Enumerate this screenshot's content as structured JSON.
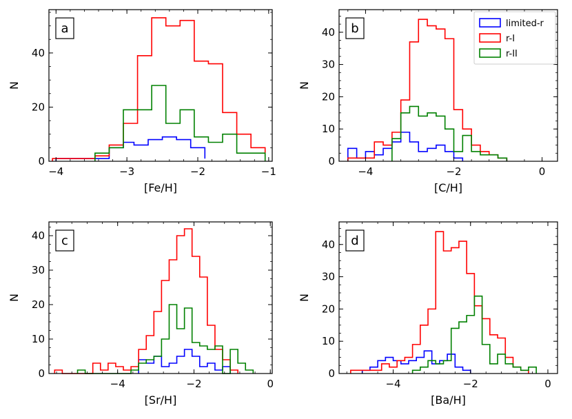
{
  "colors": {
    "limited_r": "#0000ff",
    "r_I": "#ff0000",
    "r_II": "#008000"
  },
  "legend": [
    {
      "label": "limited-r",
      "series": "limited_r"
    },
    {
      "label": "r-I",
      "series": "r_I"
    },
    {
      "label": "r-II",
      "series": "r_II"
    }
  ],
  "chart_data": [
    {
      "type": "histogram",
      "panel": "a",
      "xlabel": "[Fe/H]",
      "ylabel": "N",
      "xlim": [
        -4.1,
        -0.95
      ],
      "ylim": [
        0,
        56
      ],
      "xticks": [
        -4,
        -3,
        -2,
        -1
      ],
      "xtick_labels": [
        "−4",
        "−3",
        "−2",
        "−1"
      ],
      "yticks": [
        0,
        20,
        40
      ],
      "ytick_labels": [
        "0",
        "20",
        "40"
      ],
      "series": [
        {
          "name": "limited-r",
          "key": "limited_r",
          "edges": [
            -4.0,
            -3.65,
            -3.25,
            -3.05,
            -2.9,
            -2.7,
            -2.5,
            -2.3,
            -2.1,
            -1.9
          ],
          "counts": [
            1,
            1,
            5,
            7,
            6,
            8,
            9,
            8,
            5,
            1
          ]
        },
        {
          "name": "r-I",
          "key": "r_I",
          "edges": [
            -4.05,
            -3.85,
            -3.65,
            -3.45,
            -3.25,
            -3.05,
            -2.85,
            -2.65,
            -2.45,
            -2.25,
            -2.05,
            -1.85,
            -1.65,
            -1.45,
            -1.25,
            -1.05
          ],
          "counts": [
            1,
            1,
            1,
            2,
            6,
            14,
            39,
            53,
            50,
            52,
            37,
            36,
            18,
            10,
            5,
            2
          ]
        },
        {
          "name": "r-II",
          "key": "r_II",
          "edges": [
            -3.45,
            -3.25,
            -3.05,
            -2.85,
            -2.65,
            -2.45,
            -2.25,
            -2.05,
            -1.85,
            -1.65,
            -1.45,
            -1.25,
            -1.05
          ],
          "counts": [
            3,
            5,
            19,
            19,
            28,
            14,
            19,
            9,
            7,
            10,
            3,
            3
          ]
        }
      ]
    },
    {
      "type": "histogram",
      "panel": "b",
      "xlabel": "[C/H]",
      "ylabel": "N",
      "xlim": [
        -4.6,
        0.35
      ],
      "ylim": [
        0,
        47
      ],
      "xticks": [
        -4,
        -2,
        0
      ],
      "xtick_labels": [
        "−4",
        "−2",
        "0"
      ],
      "yticks": [
        0,
        10,
        20,
        30,
        40
      ],
      "ytick_labels": [
        "0",
        "10",
        "20",
        "30",
        "40"
      ],
      "series": [
        {
          "name": "limited-r",
          "key": "limited_r",
          "edges": [
            -4.4,
            -4.2,
            -4.0,
            -3.8,
            -3.6,
            -3.4,
            -3.2,
            -3.0,
            -2.8,
            -2.6,
            -2.4,
            -2.2,
            -2.0,
            -1.8
          ],
          "counts": [
            4,
            1,
            3,
            2,
            4,
            6,
            9,
            6,
            3,
            4,
            5,
            3,
            1
          ]
        },
        {
          "name": "r-I",
          "key": "r_I",
          "edges": [
            -4.4,
            -4.2,
            -4.0,
            -3.8,
            -3.6,
            -3.4,
            -3.2,
            -3.0,
            -2.8,
            -2.6,
            -2.4,
            -2.2,
            -2.0,
            -1.8,
            -1.6,
            -1.4,
            -1.2,
            -1.0,
            -0.8
          ],
          "counts": [
            1,
            1,
            1,
            6,
            5,
            9,
            19,
            37,
            44,
            42,
            41,
            38,
            16,
            10,
            5,
            3,
            2,
            1
          ]
        },
        {
          "name": "r-II",
          "key": "r_II",
          "edges": [
            -3.4,
            -3.2,
            -3.0,
            -2.8,
            -2.6,
            -2.4,
            -2.2,
            -2.0,
            -1.8,
            -1.6,
            -1.4,
            -1.2,
            -1.0,
            -0.8
          ],
          "counts": [
            7,
            15,
            17,
            14,
            15,
            14,
            10,
            3,
            8,
            3,
            2,
            2,
            1
          ]
        }
      ]
    },
    {
      "type": "histogram",
      "panel": "c",
      "xlabel": "[Sr/H]",
      "ylabel": "N",
      "xlim": [
        -5.8,
        0.05
      ],
      "ylim": [
        0,
        44
      ],
      "xticks": [
        -4,
        -2,
        0
      ],
      "xtick_labels": [
        "−4",
        "−2",
        "0"
      ],
      "yticks": [
        0,
        10,
        20,
        30,
        40
      ],
      "ytick_labels": [
        "0",
        "10",
        "20",
        "30",
        "40"
      ],
      "series": [
        {
          "name": "limited-r",
          "key": "limited_r",
          "edges": [
            -3.45,
            -3.25,
            -3.05,
            -2.85,
            -2.65,
            -2.45,
            -2.25,
            -2.05,
            -1.85,
            -1.65,
            -1.45,
            -1.25,
            -1.05
          ],
          "counts": [
            4,
            3,
            5,
            2,
            3,
            5,
            7,
            5,
            2,
            3,
            1,
            2
          ]
        },
        {
          "name": "r-I",
          "key": "r_I",
          "edges": [
            -5.65,
            -5.45,
            -4.65,
            -4.45,
            -4.25,
            -4.05,
            -3.85,
            -3.65,
            -3.45,
            -3.25,
            -3.05,
            -2.85,
            -2.65,
            -2.45,
            -2.25,
            -2.05,
            -1.85,
            -1.65,
            -1.45,
            -1.25,
            -1.05,
            -0.85
          ],
          "counts": [
            1,
            0,
            3,
            1,
            3,
            2,
            1,
            2,
            7,
            11,
            18,
            27,
            33,
            40,
            42,
            34,
            28,
            14,
            7,
            4,
            1
          ]
        },
        {
          "name": "r-II",
          "key": "r_II",
          "edges": [
            -5.05,
            -4.85,
            -3.65,
            -3.45,
            -3.25,
            -3.05,
            -2.85,
            -2.65,
            -2.45,
            -2.25,
            -2.05,
            -1.85,
            -1.65,
            -1.45,
            -1.25,
            -1.05,
            -0.85,
            -0.65,
            -0.45
          ],
          "counts": [
            1,
            0,
            1,
            3,
            4,
            5,
            10,
            20,
            13,
            19,
            9,
            8,
            7,
            8,
            0,
            7,
            3,
            1
          ]
        }
      ]
    },
    {
      "type": "histogram",
      "panel": "d",
      "xlabel": "[Ba/H]",
      "ylabel": "N",
      "xlim": [
        -5.4,
        0.25
      ],
      "ylim": [
        0,
        47
      ],
      "xticks": [
        -4,
        -2,
        0
      ],
      "xtick_labels": [
        "−4",
        "−2",
        "0"
      ],
      "yticks": [
        0,
        10,
        20,
        30,
        40
      ],
      "ytick_labels": [
        "0",
        "10",
        "20",
        "30",
        "40"
      ],
      "series": [
        {
          "name": "limited-r",
          "key": "limited_r",
          "edges": [
            -4.8,
            -4.6,
            -4.4,
            -4.2,
            -4.0,
            -3.8,
            -3.6,
            -3.4,
            -3.2,
            -3.0,
            -2.8,
            -2.6,
            -2.4,
            -2.2,
            -2.0
          ],
          "counts": [
            1,
            2,
            4,
            5,
            4,
            3,
            4,
            5,
            7,
            3,
            4,
            6,
            2,
            1
          ]
        },
        {
          "name": "r-I",
          "key": "r_I",
          "edges": [
            -5.1,
            -4.9,
            -4.7,
            -4.5,
            -4.3,
            -4.1,
            -3.9,
            -3.7,
            -3.5,
            -3.3,
            -3.1,
            -2.9,
            -2.7,
            -2.5,
            -2.3,
            -2.1,
            -1.9,
            -1.7,
            -1.5,
            -1.3,
            -1.1,
            -0.9,
            -0.7,
            -0.5
          ],
          "counts": [
            1,
            1,
            1,
            1,
            3,
            2,
            4,
            5,
            9,
            15,
            20,
            44,
            38,
            39,
            41,
            31,
            21,
            17,
            12,
            11,
            5,
            2,
            1
          ]
        },
        {
          "name": "r-II",
          "key": "r_II",
          "edges": [
            -3.5,
            -3.3,
            -3.1,
            -2.9,
            -2.7,
            -2.5,
            -2.3,
            -2.1,
            -1.9,
            -1.7,
            -1.5,
            -1.3,
            -1.1,
            -0.9,
            -0.7,
            -0.5,
            -0.3
          ],
          "counts": [
            1,
            2,
            4,
            3,
            4,
            14,
            16,
            18,
            24,
            9,
            3,
            6,
            3,
            2,
            1,
            2
          ]
        }
      ]
    }
  ]
}
